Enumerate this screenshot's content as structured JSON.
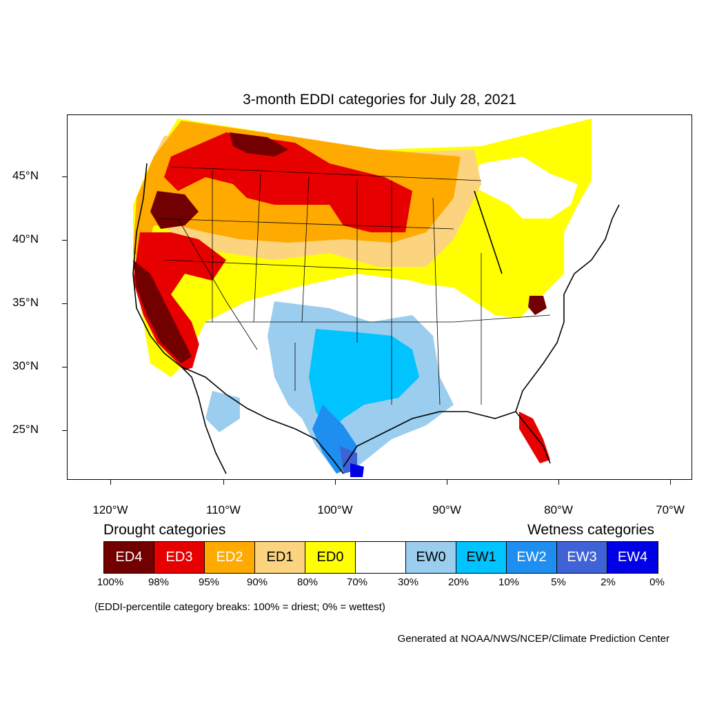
{
  "title": "3-month EDDI categories for July 28, 2021",
  "map": {
    "lat_labels": [
      "45°N",
      "40°N",
      "35°N",
      "30°N",
      "25°N"
    ],
    "lon_labels": [
      "120°W",
      "110°W",
      "100°W",
      "90°W",
      "80°W",
      "70°W"
    ]
  },
  "legend": {
    "drought_heading": "Drought categories",
    "wetness_heading": "Wetness categories",
    "categories": [
      {
        "label": "ED4",
        "color": "#730000",
        "text_color": "#ffffff"
      },
      {
        "label": "ED3",
        "color": "#e60000",
        "text_color": "#ffffff"
      },
      {
        "label": "ED2",
        "color": "#ffaa00",
        "text_color": "#ffffff"
      },
      {
        "label": "ED1",
        "color": "#fcd37f",
        "text_color": "#000000"
      },
      {
        "label": "ED0",
        "color": "#ffff00",
        "text_color": "#000000"
      },
      {
        "label": "",
        "color": "#ffffff",
        "text_color": "#000000"
      },
      {
        "label": "EW0",
        "color": "#9bcdef",
        "text_color": "#000000"
      },
      {
        "label": "EW1",
        "color": "#00c3ff",
        "text_color": "#000000"
      },
      {
        "label": "EW2",
        "color": "#1e8ef0",
        "text_color": "#ffffff"
      },
      {
        "label": "EW3",
        "color": "#3f63d7",
        "text_color": "#ffffff"
      },
      {
        "label": "EW4",
        "color": "#0000e6",
        "text_color": "#ffffff"
      }
    ],
    "percent_breaks": [
      "100%",
      "98%",
      "95%",
      "90%",
      "80%",
      "70%",
      "30%",
      "20%",
      "10%",
      "5%",
      "2%",
      "0%"
    ]
  },
  "note": "(EDDI-percentile category breaks: 100% = driest; 0% = wettest)",
  "credit": "Generated at NOAA/NWS/NCEP/Climate Prediction Center"
}
